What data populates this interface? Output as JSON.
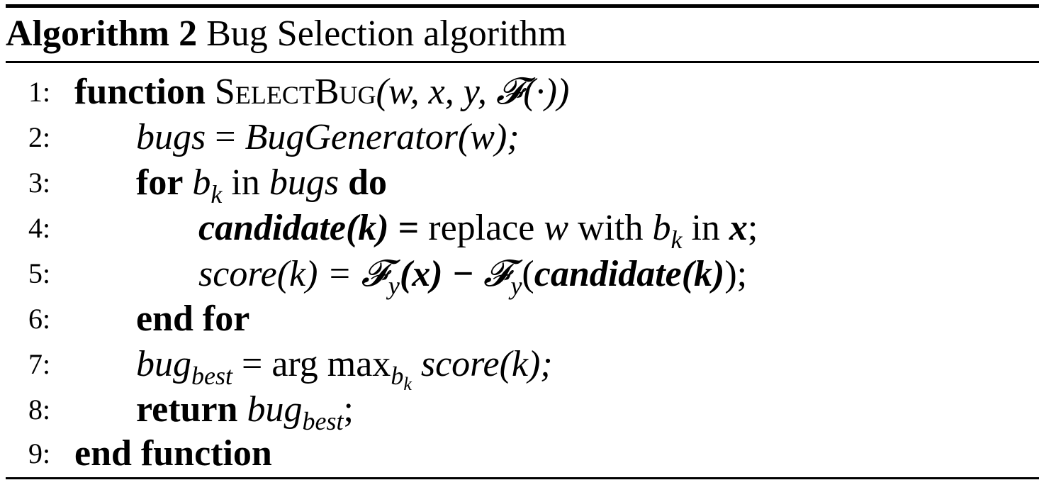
{
  "caption": {
    "label": "Algorithm 2",
    "title": " Bug Selection algorithm"
  },
  "lines": [
    {
      "num": "1:",
      "kw": "function",
      "name": "SelectBug",
      "args": "(w, x, y, 𝓕(·))"
    },
    {
      "num": "2:",
      "lhs": "bugs",
      "eq": " = ",
      "rhs": "BugGenerator",
      "rhs_arg": "(w);"
    },
    {
      "num": "3:",
      "kw1": "for",
      "var": " b",
      "var_sub": "k",
      "in": " in ",
      "coll": "bugs",
      "kw2": " do"
    },
    {
      "num": "4:",
      "cand": "candidate(k)",
      "eq": " = ",
      "text1": "replace ",
      "w": "w",
      "text2": " with ",
      "b": "b",
      "b_sub": "k",
      "text3": " in ",
      "x": "x",
      "end": ";"
    },
    {
      "num": "5:",
      "lhs": "score",
      "lhs_arg": "(k) = ",
      "f1": "𝓕",
      "f1_sub": "y",
      "f1_arg": "(x) − ",
      "f2": "𝓕",
      "f2_sub": "y",
      "f2_open": "(",
      "cand": "candidate(k)",
      "close": ");"
    },
    {
      "num": "6:",
      "kw": "end for"
    },
    {
      "num": "7:",
      "lhs": "bug",
      "lhs_sub": "best",
      "mid": " = arg max",
      "op_sub": "b",
      "op_subsub": "k",
      "rhs": " score",
      "rhs_arg": "(k);"
    },
    {
      "num": "8:",
      "kw": "return",
      "val": " bug",
      "val_sub": "best",
      "end": ";"
    },
    {
      "num": "9:",
      "kw": "end function"
    }
  ]
}
